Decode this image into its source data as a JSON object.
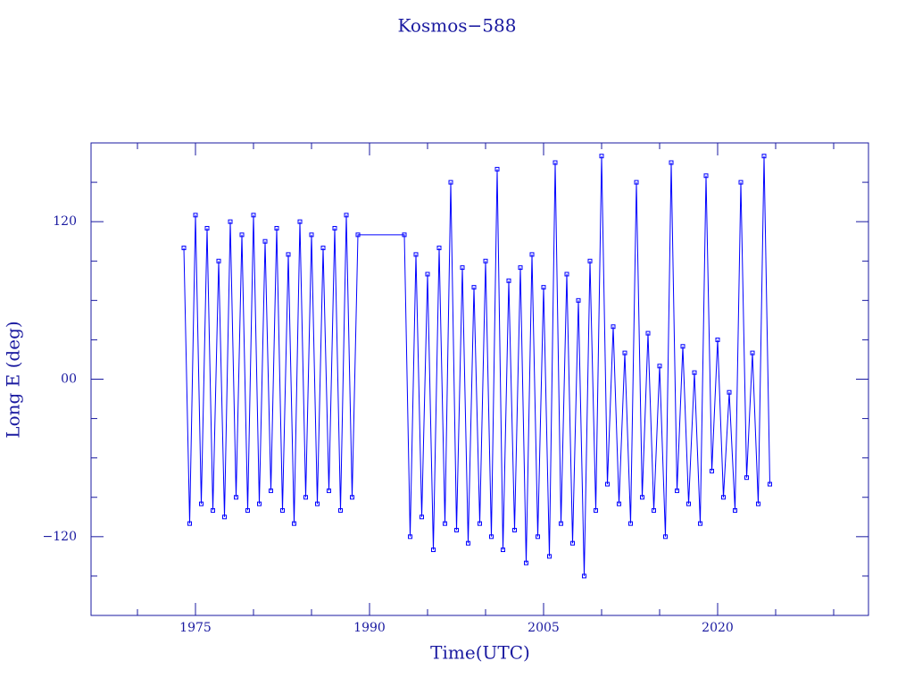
{
  "chart_data": {
    "type": "line",
    "title": "Kosmos−588",
    "xlabel": "Time(UTC)",
    "ylabel": "Long E (deg)",
    "color": "#0000ff",
    "axis_color": "#1a1aa0",
    "marker": "square",
    "xlim": [
      1966,
      2033
    ],
    "ylim": [
      -180,
      180
    ],
    "xticks": [
      1975,
      1990,
      2005,
      2020
    ],
    "xminor": [
      1970,
      1980,
      1985,
      1995,
      2000,
      2010,
      2015,
      2025,
      2030
    ],
    "yticks": [
      {
        "value": -120,
        "label": "−120"
      },
      {
        "value": 0,
        "label": "00"
      },
      120
    ],
    "yminor": [
      -150,
      -90,
      -60,
      -30,
      30,
      60,
      90,
      150
    ],
    "x": [
      1974.0,
      1974.5,
      1975.0,
      1975.5,
      1976.0,
      1976.5,
      1977.0,
      1977.5,
      1978.0,
      1978.5,
      1979.0,
      1979.5,
      1980.0,
      1980.5,
      1981.0,
      1981.5,
      1982.0,
      1982.5,
      1983.0,
      1983.5,
      1984.0,
      1984.5,
      1985.0,
      1985.5,
      1986.0,
      1986.5,
      1987.0,
      1987.5,
      1988.0,
      1988.5,
      1989.0,
      1993.0,
      1993.5,
      1994.0,
      1994.5,
      1995.0,
      1995.5,
      1996.0,
      1996.5,
      1997.0,
      1997.5,
      1998.0,
      1998.5,
      1999.0,
      1999.5,
      2000.0,
      2000.5,
      2001.0,
      2001.5,
      2002.0,
      2002.5,
      2003.0,
      2003.5,
      2004.0,
      2004.5,
      2005.0,
      2005.5,
      2006.0,
      2006.5,
      2007.0,
      2007.5,
      2008.0,
      2008.5,
      2009.0,
      2009.5,
      2010.0,
      2010.5,
      2011.0,
      2011.5,
      2012.0,
      2012.5,
      2013.0,
      2013.5,
      2014.0,
      2014.5,
      2015.0,
      2015.5,
      2016.0,
      2016.5,
      2017.0,
      2017.5,
      2018.0,
      2018.5,
      2019.0,
      2019.5,
      2020.0,
      2020.5,
      2021.0,
      2021.5,
      2022.0,
      2022.5,
      2023.0,
      2023.5,
      2024.0,
      2024.5
    ],
    "values": [
      100,
      -110,
      125,
      -95,
      115,
      -100,
      90,
      -105,
      120,
      -90,
      110,
      -100,
      125,
      -95,
      105,
      -85,
      115,
      -100,
      95,
      -110,
      120,
      -90,
      110,
      -95,
      100,
      -85,
      115,
      -100,
      125,
      -90,
      110,
      110,
      -120,
      95,
      -105,
      80,
      -130,
      100,
      -110,
      150,
      -115,
      85,
      -125,
      70,
      -110,
      90,
      -120,
      160,
      -130,
      75,
      -115,
      85,
      -140,
      95,
      -120,
      70,
      -135,
      165,
      -110,
      80,
      -125,
      60,
      -150,
      90,
      -100,
      170,
      -80,
      40,
      -95,
      20,
      -110,
      150,
      -90,
      35,
      -100,
      10,
      -120,
      165,
      -85,
      25,
      -95,
      5,
      -110,
      155,
      -70,
      30,
      -90,
      -10,
      -100,
      150,
      -75,
      20,
      -95,
      170,
      -80
    ]
  }
}
